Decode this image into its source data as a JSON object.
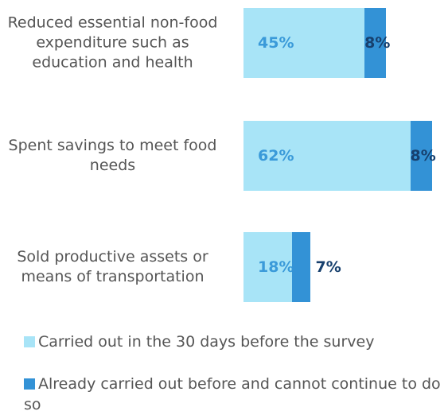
{
  "chart_data": {
    "type": "stacked-bar-horizontal",
    "categories": [
      "Reduced essential non-food expenditure such as education and health",
      "Spent savings to meet food needs",
      "Sold productive assets or means of transportation"
    ],
    "series": [
      {
        "name": "Carried out in the 30 days before the survey",
        "color": "#a8e4f7",
        "label_color": "#3a9ad9",
        "values": [
          45,
          62,
          18
        ],
        "value_labels": [
          "45%",
          "62%",
          "18%"
        ]
      },
      {
        "name": "Already carried out before and cannot continue to do so",
        "color": "#3392d6",
        "label_color": "#17406e",
        "values": [
          8,
          8,
          7
        ],
        "value_labels": [
          "8%",
          "8%",
          "7%"
        ]
      }
    ]
  }
}
